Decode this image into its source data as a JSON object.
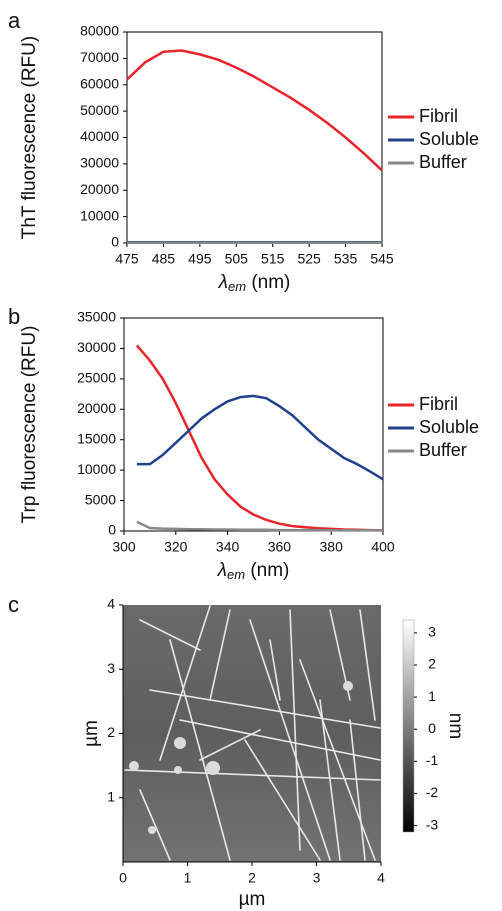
{
  "chart_data": [
    {
      "type": "line",
      "panel": "a",
      "y_label": "ThT fluorescence (RFU)",
      "x_label": [
        "λ",
        "em",
        " (nm)"
      ],
      "x": [
        475,
        480,
        485,
        490,
        495,
        500,
        505,
        510,
        515,
        520,
        525,
        530,
        535,
        540,
        545
      ],
      "series": [
        {
          "name": "Fibril",
          "color": "#e8232a",
          "values": [
            62000,
            68500,
            72500,
            73000,
            71500,
            69500,
            66500,
            63000,
            59000,
            55000,
            50500,
            45500,
            40000,
            34000,
            27500
          ]
        },
        {
          "name": "Soluble",
          "color": "#1f3f8f",
          "values": [
            300,
            300,
            300,
            300,
            300,
            300,
            300,
            300,
            300,
            300,
            300,
            300,
            300,
            300,
            300
          ]
        },
        {
          "name": "Buffer",
          "color": "#888888",
          "values": [
            100,
            100,
            100,
            100,
            100,
            100,
            100,
            100,
            100,
            100,
            100,
            100,
            100,
            100,
            100
          ]
        }
      ],
      "xlim": [
        475,
        545
      ],
      "xticks": [
        475,
        485,
        495,
        505,
        515,
        525,
        535,
        545
      ],
      "ylim": [
        0,
        80000
      ],
      "yticks": [
        0,
        10000,
        20000,
        30000,
        40000,
        50000,
        60000,
        70000,
        80000
      ]
    },
    {
      "type": "line",
      "panel": "b",
      "y_label": "Trp fluorescence (RFU)",
      "x_label": [
        "λ",
        "em",
        " (nm)"
      ],
      "x": [
        305,
        310,
        315,
        320,
        325,
        330,
        335,
        340,
        345,
        350,
        355,
        360,
        365,
        370,
        375,
        380,
        385,
        390,
        395,
        400
      ],
      "series": [
        {
          "name": "Fibril",
          "color": "#e8232a",
          "values": [
            30500,
            28000,
            25000,
            21000,
            16500,
            12000,
            8500,
            6000,
            4000,
            2700,
            1800,
            1200,
            800,
            600,
            450,
            350,
            250,
            200,
            150,
            100
          ]
        },
        {
          "name": "Soluble",
          "color": "#1f3f8f",
          "values": [
            11000,
            11000,
            12500,
            14500,
            16500,
            18500,
            20000,
            21300,
            22000,
            22200,
            21800,
            20500,
            19000,
            17000,
            15000,
            13500,
            12000,
            11000,
            9800,
            8500
          ]
        },
        {
          "name": "Buffer",
          "color": "#888888",
          "values": [
            1500,
            500,
            400,
            350,
            300,
            300,
            250,
            250,
            200,
            200,
            200,
            150,
            150,
            150,
            150,
            100,
            100,
            100,
            100,
            100
          ]
        }
      ],
      "xlim": [
        300,
        400
      ],
      "xticks": [
        300,
        320,
        340,
        360,
        380,
        400
      ],
      "ylim": [
        0,
        35000
      ],
      "yticks": [
        0,
        5000,
        10000,
        15000,
        20000,
        25000,
        30000,
        35000
      ]
    },
    {
      "type": "image",
      "panel": "c",
      "x_label": "µm",
      "y_label": "µm",
      "xlim": [
        0,
        4
      ],
      "xticks": [
        0,
        1,
        2,
        3,
        4
      ],
      "ylim": [
        0,
        4
      ],
      "yticks": [
        1,
        2,
        3,
        4
      ],
      "colorbar_label": "nm",
      "colorbar_lim": [
        -3.2,
        3.4
      ],
      "colorbar_ticks": [
        -3,
        -2,
        -1,
        0,
        1,
        2,
        3
      ]
    }
  ]
}
